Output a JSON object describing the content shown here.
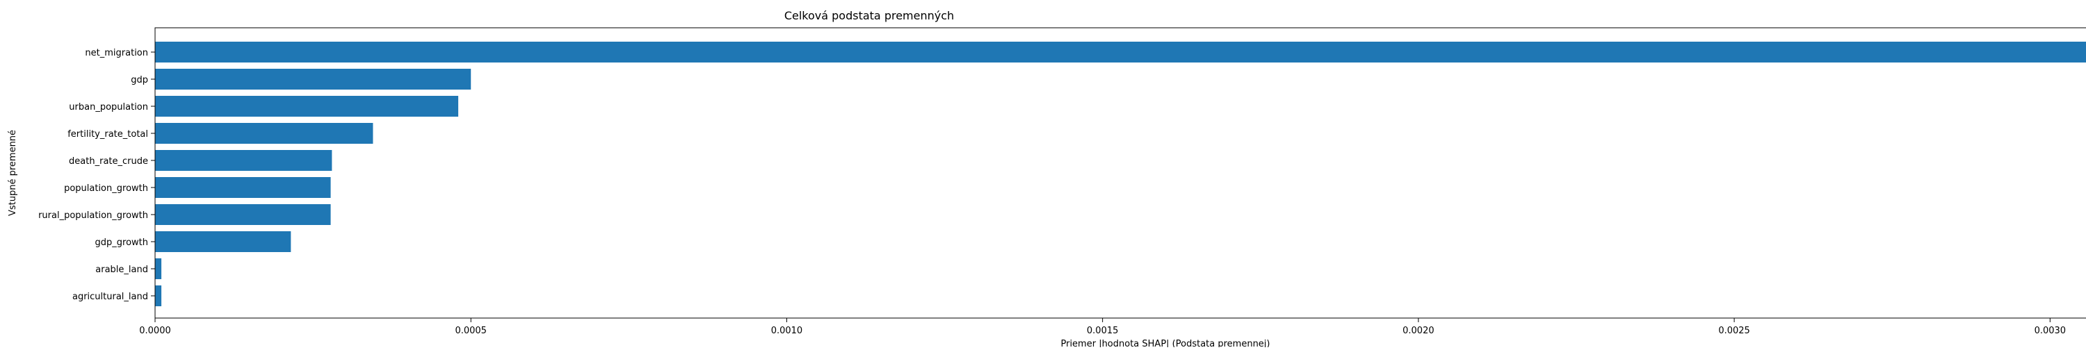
{
  "chart_data": {
    "type": "bar",
    "orientation": "horizontal",
    "title": "Celková podstata premenných",
    "xlabel": "Priemer |hodnota SHAP| (Podstata premennej)",
    "ylabel": "Vstupné premenné",
    "categories": [
      "net_migration",
      "gdp",
      "urban_population",
      "fertility_rate_total",
      "death_rate_crude",
      "population_growth",
      "rural_population_growth",
      "gdp_growth",
      "arable_land",
      "agricultural_land"
    ],
    "values": [
      0.00306,
      0.0005,
      0.00048,
      0.000345,
      0.00028,
      0.000278,
      0.000278,
      0.000215,
      1e-05,
      1e-05
    ],
    "xlim": [
      0,
      0.0032
    ],
    "xticks": [
      "0.0000",
      "0.0005",
      "0.0010",
      "0.0015",
      "0.0020",
      "0.0025",
      "0.0030"
    ],
    "xtick_values": [
      0,
      0.0005,
      0.001,
      0.0015,
      0.002,
      0.0025,
      0.003
    ],
    "bar_color": "#1f77b4",
    "grid": false,
    "legend": "none"
  }
}
